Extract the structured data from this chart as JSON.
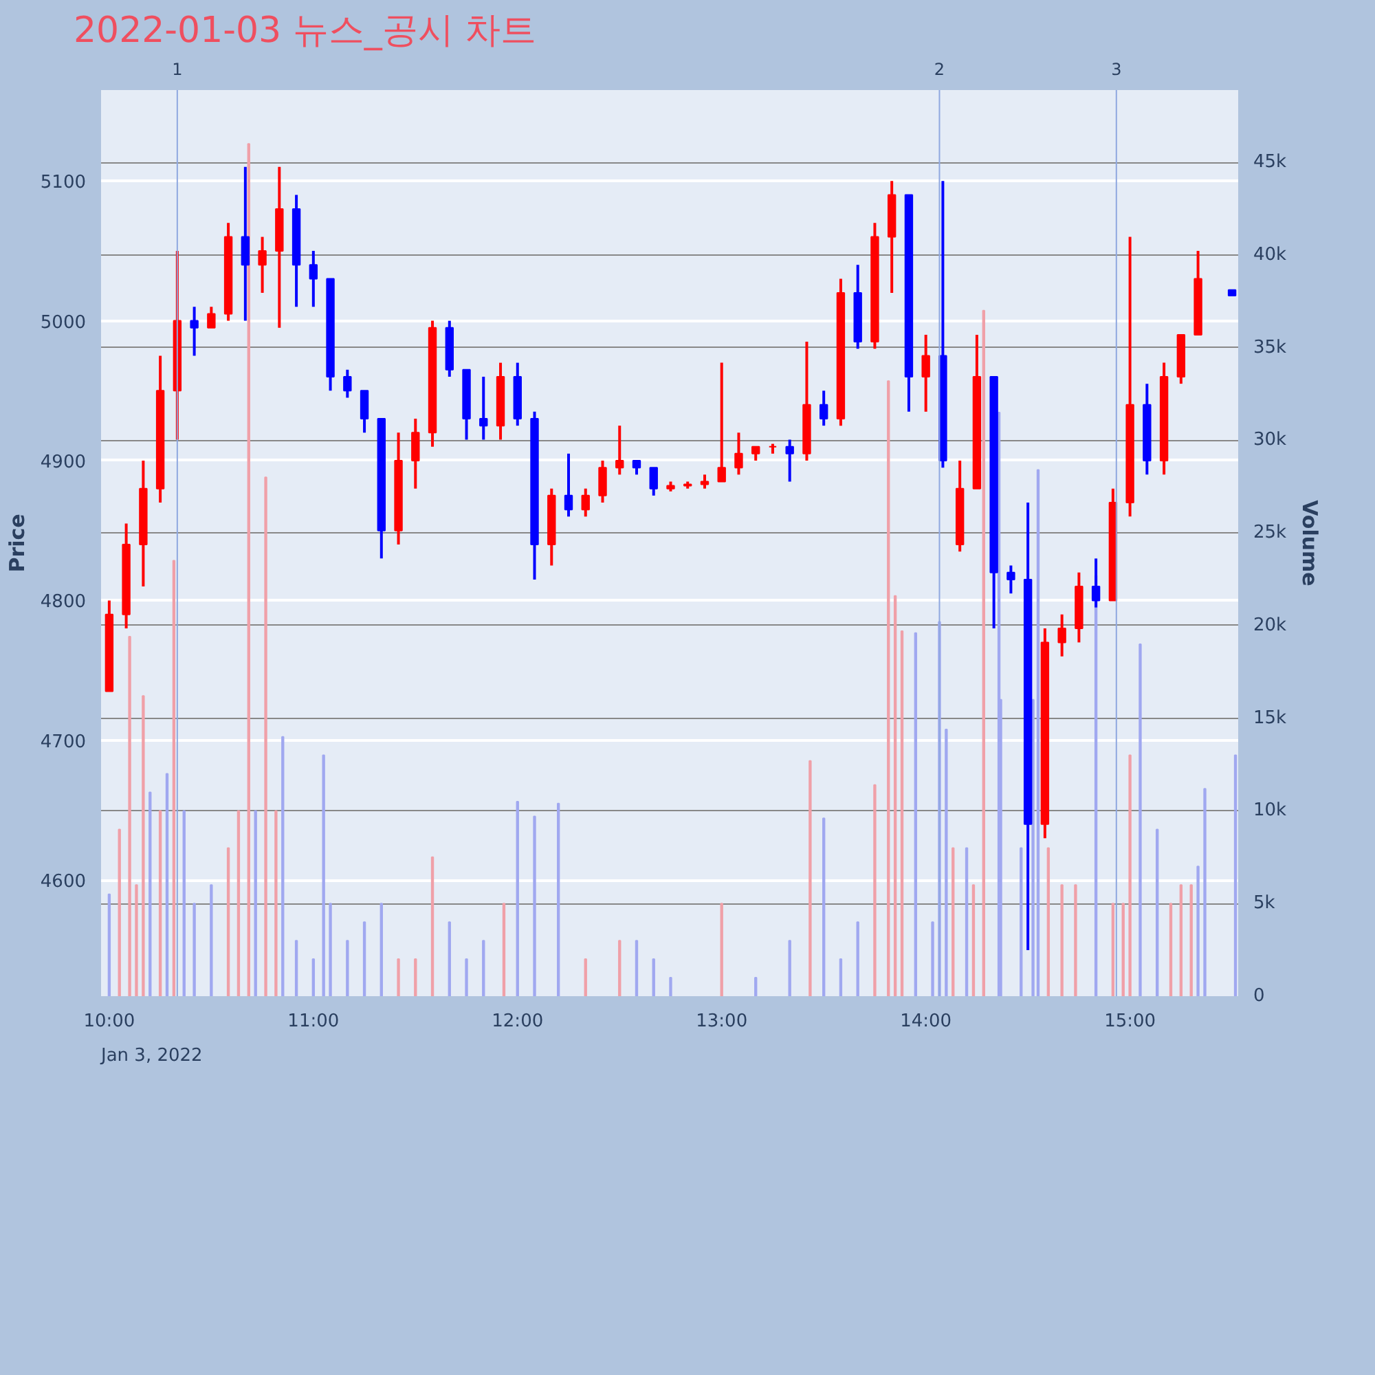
{
  "chart_data": {
    "type": "candlestick",
    "title": "2022-01-03 뉴스_공시 차트",
    "ylabel": "Price",
    "y2label": "Volume",
    "annotations": [
      "Jan 3, 2022",
      "1",
      "2",
      "3"
    ],
    "x": [
      10.0,
      10.0833,
      10.1667,
      10.25,
      10.3333,
      10.4167,
      10.5,
      10.5833,
      10.6667,
      10.75,
      10.8333,
      10.9167,
      11.0,
      11.0833,
      11.1667,
      11.25,
      11.3333,
      11.4167,
      11.5,
      11.5833,
      11.6667,
      11.75,
      11.8333,
      11.9167,
      12.0,
      12.0833,
      12.1667,
      12.25,
      12.3333,
      12.4167,
      12.5,
      12.5833,
      12.6667,
      12.75,
      12.8333,
      12.9167,
      13.0,
      13.0833,
      13.1667,
      13.25,
      13.3333,
      13.4167,
      13.5,
      13.5833,
      13.6667,
      13.75,
      13.8333,
      13.9167,
      14.0,
      14.0833,
      14.1667,
      14.25,
      14.3333,
      14.4167,
      14.5,
      14.5833,
      14.6667,
      14.75,
      14.8333,
      14.9167,
      15.0,
      15.0833,
      15.1667,
      15.25,
      15.3333,
      15.5
    ],
    "ohlc": [
      [
        4735,
        4800,
        4735,
        4790
      ],
      [
        4790,
        4855,
        4780,
        4840
      ],
      [
        4840,
        4900,
        4810,
        4880
      ],
      [
        4880,
        4975,
        4870,
        4950
      ],
      [
        4950,
        5050,
        4915,
        5000
      ],
      [
        5000,
        5010,
        4975,
        4995
      ],
      [
        4995,
        5010,
        4995,
        5005
      ],
      [
        5005,
        5070,
        5000,
        5060
      ],
      [
        5060,
        5110,
        5000,
        5040
      ],
      [
        5040,
        5060,
        5020,
        5050
      ],
      [
        5050,
        5110,
        4995,
        5080
      ],
      [
        5080,
        5090,
        5010,
        5040
      ],
      [
        5040,
        5050,
        5010,
        5030
      ],
      [
        5030,
        5030,
        4950,
        4960
      ],
      [
        4960,
        4965,
        4945,
        4950
      ],
      [
        4950,
        4950,
        4920,
        4930
      ],
      [
        4930,
        4930,
        4830,
        4850
      ],
      [
        4850,
        4920,
        4840,
        4900
      ],
      [
        4900,
        4930,
        4880,
        4920
      ],
      [
        4920,
        5000,
        4910,
        4995
      ],
      [
        4995,
        5000,
        4960,
        4965
      ],
      [
        4965,
        4965,
        4915,
        4930
      ],
      [
        4930,
        4960,
        4915,
        4925
      ],
      [
        4925,
        4970,
        4915,
        4960
      ],
      [
        4960,
        4970,
        4925,
        4930
      ],
      [
        4930,
        4935,
        4815,
        4840
      ],
      [
        4840,
        4880,
        4825,
        4875
      ],
      [
        4875,
        4905,
        4860,
        4865
      ],
      [
        4865,
        4880,
        4860,
        4875
      ],
      [
        4875,
        4900,
        4870,
        4895
      ],
      [
        4895,
        4925,
        4890,
        4900
      ],
      [
        4900,
        4900,
        4890,
        4895
      ],
      [
        4895,
        4895,
        4875,
        4880
      ],
      [
        4880,
        4885,
        4878,
        4882
      ],
      [
        4882,
        4885,
        4880,
        4883
      ],
      [
        4883,
        4890,
        4880,
        4885
      ],
      [
        4885,
        4970,
        4885,
        4895
      ],
      [
        4895,
        4920,
        4890,
        4905
      ],
      [
        4905,
        4910,
        4900,
        4910
      ],
      [
        4910,
        4912,
        4905,
        4910
      ],
      [
        4910,
        4915,
        4885,
        4905
      ],
      [
        4905,
        4985,
        4900,
        4940
      ],
      [
        4940,
        4950,
        4925,
        4930
      ],
      [
        4930,
        5030,
        4925,
        5020
      ],
      [
        5020,
        5040,
        4980,
        4985
      ],
      [
        4985,
        5070,
        4980,
        5060
      ],
      [
        5060,
        5100,
        5020,
        5090
      ],
      [
        5090,
        5090,
        4935,
        4960
      ],
      [
        4960,
        4990,
        4935,
        4975
      ],
      [
        4975,
        5100,
        4895,
        4900
      ],
      [
        4840,
        4900,
        4835,
        4880
      ],
      [
        4880,
        4990,
        4880,
        4960
      ],
      [
        4960,
        4960,
        4780,
        4820
      ],
      [
        4820,
        4825,
        4805,
        4815
      ],
      [
        4815,
        4870,
        4550,
        4640
      ],
      [
        4640,
        4780,
        4630,
        4770
      ],
      [
        4770,
        4790,
        4760,
        4780
      ],
      [
        4780,
        4820,
        4770,
        4810
      ],
      [
        4810,
        4830,
        4795,
        4800
      ],
      [
        4800,
        4880,
        4800,
        4870
      ],
      [
        4870,
        5060,
        4860,
        4940
      ],
      [
        4940,
        4955,
        4890,
        4900
      ],
      [
        4900,
        4970,
        4890,
        4960
      ],
      [
        4960,
        4990,
        4955,
        4990
      ],
      [
        4990,
        5050,
        4990,
        5030
      ],
      [
        5022,
        5022,
        5018,
        5018
      ]
    ],
    "colors": [
      "#ff0000",
      "#ff0000",
      "#ff0000",
      "#ff0000",
      "#ff0000",
      "#0000ff",
      "#ff0000",
      "#ff0000",
      "#0000ff",
      "#ff0000",
      "#ff0000",
      "#0000ff",
      "#0000ff",
      "#0000ff",
      "#0000ff",
      "#0000ff",
      "#0000ff",
      "#ff0000",
      "#ff0000",
      "#ff0000",
      "#0000ff",
      "#0000ff",
      "#0000ff",
      "#ff0000",
      "#0000ff",
      "#0000ff",
      "#ff0000",
      "#0000ff",
      "#ff0000",
      "#ff0000",
      "#ff0000",
      "#0000ff",
      "#0000ff",
      "#ff0000",
      "#ff0000",
      "#ff0000",
      "#ff0000",
      "#ff0000",
      "#ff0000",
      "#ff0000",
      "#0000ff",
      "#ff0000",
      "#0000ff",
      "#ff0000",
      "#0000ff",
      "#ff0000",
      "#ff0000",
      "#0000ff",
      "#ff0000",
      "#0000ff",
      "#ff0000",
      "#ff0000",
      "#0000ff",
      "#0000ff",
      "#0000ff",
      "#ff0000",
      "#ff0000",
      "#ff0000",
      "#0000ff",
      "#ff0000",
      "#ff0000",
      "#0000ff",
      "#ff0000",
      "#ff0000",
      "#ff0000",
      "#0000ff"
    ],
    "series": [
      {
        "type": "bar",
        "axis": "y2",
        "x": [
          10.0,
          10.05,
          10.1,
          10.1333,
          10.1667,
          10.2,
          10.25,
          10.2833,
          10.3167,
          10.3667,
          10.4167,
          10.5,
          10.5833,
          10.6333,
          10.6833,
          10.7167,
          10.7667,
          10.8167,
          10.85,
          10.9167,
          11.0,
          11.05,
          11.0833,
          11.1667,
          11.25,
          11.3333,
          11.4167,
          11.5,
          11.5833,
          11.6667,
          11.75,
          11.8333,
          11.9333,
          12.0,
          12.0833,
          12.2,
          12.3333,
          12.5,
          12.5833,
          12.6667,
          12.75,
          13.0,
          13.1667,
          13.3333,
          13.4333,
          13.5,
          13.5833,
          13.6667,
          13.75,
          13.8167,
          13.85,
          13.8833,
          13.95,
          14.0333,
          14.0667,
          14.1,
          14.1333,
          14.2,
          14.2333,
          14.2833,
          14.3583,
          14.3667,
          14.4667,
          14.525,
          14.55,
          14.6,
          14.6667,
          14.7333,
          14.8333,
          14.9167,
          14.9667,
          15.0,
          15.05,
          15.1333,
          15.2,
          15.25,
          15.3,
          15.3333,
          15.3667,
          15.5167
        ],
        "values": [
          5.5,
          9,
          19.4,
          6,
          16.2,
          11,
          10,
          12,
          23.5,
          10,
          5,
          6,
          8,
          10,
          46,
          10,
          28,
          10,
          14,
          3,
          2,
          13,
          5,
          3,
          4,
          5,
          2,
          2,
          7.5,
          4,
          2,
          3,
          5,
          10.5,
          9.7,
          10.4,
          2,
          3,
          3,
          2,
          1,
          5,
          1,
          3,
          12.7,
          9.6,
          2,
          4,
          11.4,
          33.2,
          21.6,
          19.7,
          19.6,
          4,
          20.2,
          14.4,
          8,
          8,
          6,
          37,
          31.5,
          16,
          8,
          16,
          28.4,
          8,
          6,
          6,
          22.7,
          5,
          5,
          13,
          19,
          9,
          5,
          6,
          6,
          7,
          11.2,
          13
        ],
        "colors": [
          "#a0a8f0",
          "#f0a0a8",
          "#f0a0a8",
          "#f0a0a8",
          "#f0a0a8",
          "#a0a8f0",
          "#f0a0a8",
          "#a0a8f0",
          "#f0a0a8",
          "#a0a8f0",
          "#a0a8f0",
          "#a0a8f0",
          "#f0a0a8",
          "#f0a0a8",
          "#f0a0a8",
          "#a0a8f0",
          "#f0a0a8",
          "#f0a0a8",
          "#a0a8f0",
          "#a0a8f0",
          "#a0a8f0",
          "#a0a8f0",
          "#a0a8f0",
          "#a0a8f0",
          "#a0a8f0",
          "#a0a8f0",
          "#f0a0a8",
          "#f0a0a8",
          "#f0a0a8",
          "#a0a8f0",
          "#a0a8f0",
          "#a0a8f0",
          "#f0a0a8",
          "#a0a8f0",
          "#a0a8f0",
          "#a0a8f0",
          "#f0a0a8",
          "#f0a0a8",
          "#a0a8f0",
          "#a0a8f0",
          "#a0a8f0",
          "#f0a0a8",
          "#a0a8f0",
          "#a0a8f0",
          "#f0a0a8",
          "#a0a8f0",
          "#a0a8f0",
          "#a0a8f0",
          "#f0a0a8",
          "#f0a0a8",
          "#f0a0a8",
          "#f0a0a8",
          "#a0a8f0",
          "#a0a8f0",
          "#a0a8f0",
          "#a0a8f0",
          "#f0a0a8",
          "#a0a8f0",
          "#f0a0a8",
          "#f0a0a8",
          "#a0a8f0",
          "#a0a8f0",
          "#a0a8f0",
          "#a0a8f0",
          "#a0a8f0",
          "#f0a0a8",
          "#f0a0a8",
          "#f0a0a8",
          "#a0a8f0",
          "#f0a0a8",
          "#f0a0a8",
          "#f0a0a8",
          "#a0a8f0",
          "#a0a8f0",
          "#f0a0a8",
          "#f0a0a8",
          "#f0a0a8",
          "#a0a8f0",
          "#a0a8f0",
          "#a0a8f0"
        ]
      }
    ],
    "xlim": [
      9.96,
      15.53
    ],
    "xticks": [
      {
        "value": 10,
        "label": "10:00"
      },
      {
        "value": 11,
        "label": "11:00"
      },
      {
        "value": 12,
        "label": "12:00"
      },
      {
        "value": 13,
        "label": "13:00"
      },
      {
        "value": 14,
        "label": "14:00"
      },
      {
        "value": 15,
        "label": "15:00"
      }
    ],
    "ylim": [
      4517,
      5165
    ],
    "yticks": [
      4600,
      4700,
      4800,
      4900,
      5000,
      5100
    ],
    "y2lim": [
      0,
      48.9
    ],
    "y2ticks": [
      {
        "value": 0,
        "label": "0"
      },
      {
        "value": 5,
        "label": "5k"
      },
      {
        "value": 10,
        "label": "10k"
      },
      {
        "value": 15,
        "label": "15k"
      },
      {
        "value": 20,
        "label": "20k"
      },
      {
        "value": 25,
        "label": "25k"
      },
      {
        "value": 30,
        "label": "30k"
      },
      {
        "value": 35,
        "label": "35k"
      },
      {
        "value": 40,
        "label": "40k"
      },
      {
        "value": 45,
        "label": "45k"
      }
    ],
    "ref_lines": [
      {
        "axis": "x",
        "value": 10.3333,
        "color": "#8fa8e0"
      },
      {
        "axis": "x",
        "value": 14.0667,
        "color": "#8fa8e0"
      },
      {
        "axis": "x",
        "value": 14.9333,
        "color": "#8fa8e0"
      }
    ],
    "grid": "y"
  }
}
